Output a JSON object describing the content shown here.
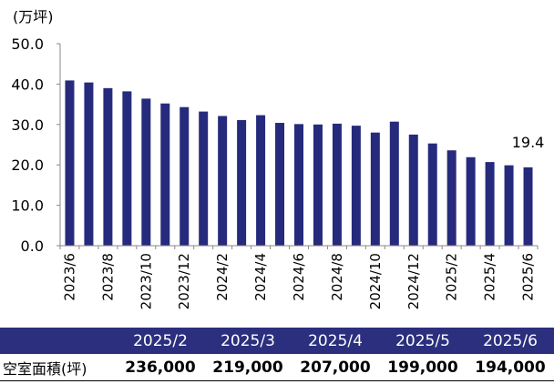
{
  "chart_data": {
    "type": "bar",
    "unit_label": "(万坪)",
    "categories": [
      "2023/6",
      "2023/7",
      "2023/8",
      "2023/9",
      "2023/10",
      "2023/11",
      "2023/12",
      "2024/1",
      "2024/2",
      "2024/3",
      "2024/4",
      "2024/5",
      "2024/6",
      "2024/7",
      "2024/8",
      "2024/9",
      "2024/10",
      "2024/11",
      "2024/12",
      "2025/1",
      "2025/2",
      "2025/3",
      "2025/4",
      "2025/5",
      "2025/6"
    ],
    "tick_labels": [
      "2023/6",
      "",
      "2023/8",
      "",
      "2023/10",
      "",
      "2023/12",
      "",
      "2024/2",
      "",
      "2024/4",
      "",
      "2024/6",
      "",
      "2024/8",
      "",
      "2024/10",
      "",
      "2024/12",
      "",
      "2025/2",
      "",
      "2025/4",
      "",
      "2025/6"
    ],
    "values": [
      40.9,
      40.4,
      39.0,
      38.2,
      36.4,
      35.2,
      34.3,
      33.2,
      32.1,
      31.1,
      32.3,
      30.4,
      30.1,
      30.0,
      30.2,
      29.7,
      28.0,
      30.7,
      27.5,
      25.3,
      23.6,
      21.9,
      20.7,
      19.9,
      19.4
    ],
    "ylim": [
      0,
      50
    ],
    "yticks": [
      "0.0",
      "10.0",
      "20.0",
      "30.0",
      "40.0",
      "50.0"
    ],
    "last_value_label": "19.4",
    "bar_color": "#262a7c",
    "grid": false
  },
  "table": {
    "headers": [
      "",
      "2025/2",
      "2025/3",
      "2025/4",
      "2025/5",
      "2025/6"
    ],
    "row_label": "空室面積(坪)",
    "values": [
      "236,000",
      "219,000",
      "207,000",
      "199,000",
      "194,000"
    ],
    "header_bg": "#2b2f7e"
  }
}
